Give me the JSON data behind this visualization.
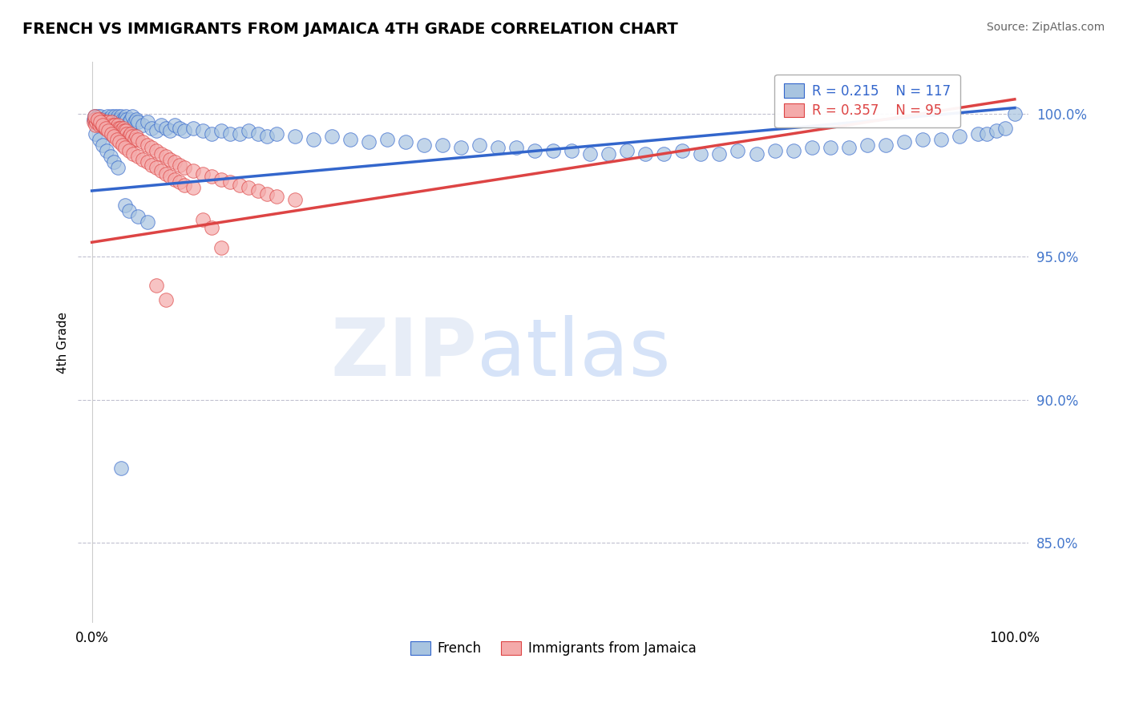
{
  "title": "FRENCH VS IMMIGRANTS FROM JAMAICA 4TH GRADE CORRELATION CHART",
  "source": "Source: ZipAtlas.com",
  "ylabel": "4th Grade",
  "ytick_labels": [
    "100.0%",
    "95.0%",
    "90.0%",
    "85.0%"
  ],
  "ytick_values": [
    1.0,
    0.95,
    0.9,
    0.85
  ],
  "ylim": [
    0.822,
    1.018
  ],
  "xlim": [
    -0.015,
    1.015
  ],
  "legend_blue_label": "R = 0.215    N = 117",
  "legend_pink_label": "R = 0.357    N = 95",
  "legend_bottom_blue": "French",
  "legend_bottom_pink": "Immigrants from Jamaica",
  "blue_color": "#A8C4E0",
  "pink_color": "#F4AAAA",
  "trendline_blue": "#3366CC",
  "trendline_pink": "#DD4444",
  "blue_trend_x": [
    0.0,
    1.0
  ],
  "blue_trend_y": [
    0.973,
    1.002
  ],
  "pink_trend_x": [
    0.0,
    1.0
  ],
  "pink_trend_y": [
    0.955,
    1.005
  ],
  "blue_scatter_x": [
    0.002,
    0.003,
    0.004,
    0.005,
    0.006,
    0.007,
    0.008,
    0.009,
    0.01,
    0.011,
    0.012,
    0.013,
    0.014,
    0.015,
    0.016,
    0.017,
    0.018,
    0.019,
    0.02,
    0.021,
    0.022,
    0.023,
    0.024,
    0.025,
    0.026,
    0.027,
    0.028,
    0.029,
    0.03,
    0.031,
    0.032,
    0.033,
    0.034,
    0.035,
    0.036,
    0.037,
    0.038,
    0.04,
    0.042,
    0.044,
    0.046,
    0.048,
    0.05,
    0.055,
    0.06,
    0.065,
    0.07,
    0.075,
    0.08,
    0.085,
    0.09,
    0.095,
    0.1,
    0.11,
    0.12,
    0.13,
    0.14,
    0.15,
    0.16,
    0.17,
    0.18,
    0.19,
    0.2,
    0.22,
    0.24,
    0.26,
    0.28,
    0.3,
    0.32,
    0.34,
    0.36,
    0.38,
    0.4,
    0.42,
    0.44,
    0.46,
    0.48,
    0.5,
    0.52,
    0.54,
    0.56,
    0.58,
    0.6,
    0.62,
    0.64,
    0.66,
    0.68,
    0.7,
    0.72,
    0.74,
    0.76,
    0.78,
    0.8,
    0.82,
    0.84,
    0.86,
    0.88,
    0.9,
    0.92,
    0.94,
    0.96,
    0.97,
    0.98,
    0.99,
    1.0,
    0.004,
    0.008,
    0.012,
    0.016,
    0.02,
    0.024,
    0.028,
    0.032,
    0.036,
    0.04,
    0.05,
    0.06
  ],
  "blue_scatter_y": [
    0.998,
    0.999,
    0.997,
    0.998,
    0.999,
    0.998,
    0.997,
    0.999,
    0.998,
    0.997,
    0.998,
    0.997,
    0.996,
    0.998,
    0.997,
    0.999,
    0.998,
    0.997,
    0.998,
    0.999,
    0.997,
    0.998,
    0.996,
    0.999,
    0.998,
    0.997,
    0.999,
    0.998,
    0.997,
    0.998,
    0.999,
    0.998,
    0.997,
    0.998,
    0.997,
    0.999,
    0.998,
    0.997,
    0.998,
    0.999,
    0.997,
    0.998,
    0.997,
    0.996,
    0.997,
    0.995,
    0.994,
    0.996,
    0.995,
    0.994,
    0.996,
    0.995,
    0.994,
    0.995,
    0.994,
    0.993,
    0.994,
    0.993,
    0.993,
    0.994,
    0.993,
    0.992,
    0.993,
    0.992,
    0.991,
    0.992,
    0.991,
    0.99,
    0.991,
    0.99,
    0.989,
    0.989,
    0.988,
    0.989,
    0.988,
    0.988,
    0.987,
    0.987,
    0.987,
    0.986,
    0.986,
    0.987,
    0.986,
    0.986,
    0.987,
    0.986,
    0.986,
    0.987,
    0.986,
    0.987,
    0.987,
    0.988,
    0.988,
    0.988,
    0.989,
    0.989,
    0.99,
    0.991,
    0.991,
    0.992,
    0.993,
    0.993,
    0.994,
    0.995,
    1.0,
    0.993,
    0.991,
    0.989,
    0.987,
    0.985,
    0.983,
    0.981,
    0.876,
    0.968,
    0.966,
    0.964,
    0.962
  ],
  "pink_scatter_x": [
    0.002,
    0.003,
    0.004,
    0.005,
    0.006,
    0.007,
    0.008,
    0.009,
    0.01,
    0.011,
    0.012,
    0.013,
    0.014,
    0.015,
    0.016,
    0.017,
    0.018,
    0.019,
    0.02,
    0.021,
    0.022,
    0.023,
    0.024,
    0.025,
    0.026,
    0.027,
    0.028,
    0.029,
    0.03,
    0.031,
    0.032,
    0.033,
    0.034,
    0.035,
    0.036,
    0.037,
    0.038,
    0.04,
    0.042,
    0.044,
    0.046,
    0.048,
    0.05,
    0.055,
    0.06,
    0.065,
    0.07,
    0.075,
    0.08,
    0.085,
    0.09,
    0.095,
    0.1,
    0.11,
    0.12,
    0.13,
    0.14,
    0.15,
    0.16,
    0.17,
    0.18,
    0.19,
    0.2,
    0.22,
    0.003,
    0.006,
    0.009,
    0.012,
    0.015,
    0.018,
    0.021,
    0.024,
    0.027,
    0.03,
    0.033,
    0.036,
    0.04,
    0.045,
    0.05,
    0.055,
    0.06,
    0.065,
    0.07,
    0.075,
    0.08,
    0.085,
    0.09,
    0.095,
    0.1,
    0.11,
    0.12,
    0.13,
    0.14,
    0.07,
    0.08
  ],
  "pink_scatter_y": [
    0.997,
    0.998,
    0.996,
    0.997,
    0.998,
    0.997,
    0.996,
    0.998,
    0.997,
    0.996,
    0.997,
    0.996,
    0.995,
    0.997,
    0.996,
    0.997,
    0.996,
    0.995,
    0.996,
    0.997,
    0.995,
    0.996,
    0.994,
    0.996,
    0.995,
    0.994,
    0.996,
    0.995,
    0.994,
    0.995,
    0.994,
    0.993,
    0.995,
    0.994,
    0.993,
    0.994,
    0.993,
    0.992,
    0.993,
    0.992,
    0.991,
    0.992,
    0.991,
    0.99,
    0.989,
    0.988,
    0.987,
    0.986,
    0.985,
    0.984,
    0.983,
    0.982,
    0.981,
    0.98,
    0.979,
    0.978,
    0.977,
    0.976,
    0.975,
    0.974,
    0.973,
    0.972,
    0.971,
    0.97,
    0.999,
    0.998,
    0.997,
    0.996,
    0.995,
    0.994,
    0.993,
    0.992,
    0.991,
    0.99,
    0.989,
    0.988,
    0.987,
    0.986,
    0.985,
    0.984,
    0.983,
    0.982,
    0.981,
    0.98,
    0.979,
    0.978,
    0.977,
    0.976,
    0.975,
    0.974,
    0.963,
    0.96,
    0.953,
    0.94,
    0.935
  ]
}
